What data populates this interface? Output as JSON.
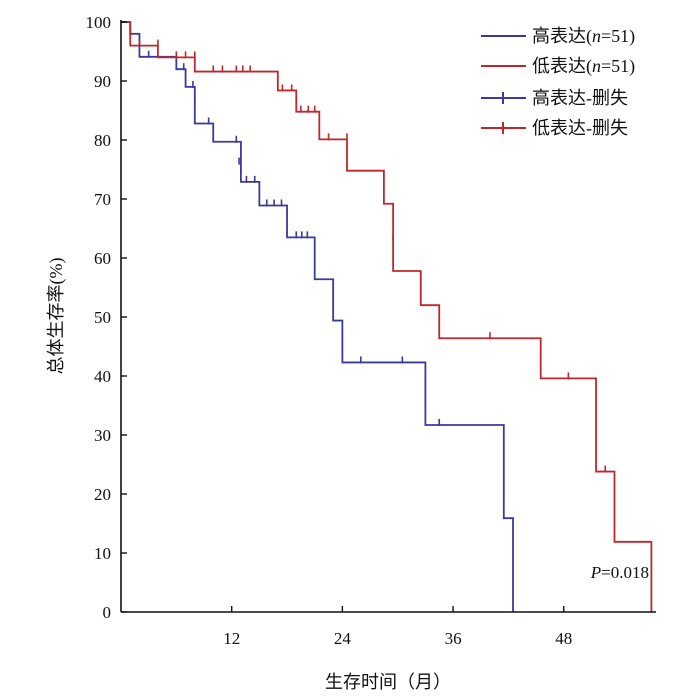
{
  "chart_data": {
    "type": "line",
    "chart_kind": "kaplan-meier",
    "title": "",
    "xlabel": "生存时间（月）",
    "ylabel": "总体生存率(%)",
    "xlim": [
      0,
      58
    ],
    "ylim": [
      0,
      100
    ],
    "xticks": [
      12,
      24,
      36,
      48
    ],
    "yticks": [
      0,
      10,
      20,
      30,
      40,
      50,
      60,
      70,
      80,
      90,
      100
    ],
    "legend_position": "top-right",
    "annotation": {
      "prefix": "P",
      "text": "=0.018"
    },
    "series": [
      {
        "name": "高表达(n=51)",
        "label_prefix": "高表达(",
        "label_n": "n",
        "label_suffix": "=51)",
        "censor_label": "高表达-删失",
        "color": "#3a3a9a",
        "steps": [
          [
            0,
            100
          ],
          [
            1,
            98
          ],
          [
            2,
            94.1
          ],
          [
            6,
            92
          ],
          [
            7,
            89
          ],
          [
            8,
            82.8
          ],
          [
            10,
            79.7
          ],
          [
            13,
            72.9
          ],
          [
            15,
            68.9
          ],
          [
            18,
            63.5
          ],
          [
            21,
            56.4
          ],
          [
            23,
            49.4
          ],
          [
            24,
            42.3
          ],
          [
            33,
            31.7
          ],
          [
            41.5,
            15.9
          ],
          [
            42.5,
            0
          ]
        ],
        "censored": [
          [
            1,
            98
          ],
          [
            3,
            94.1
          ],
          [
            6.8,
            92
          ],
          [
            7.8,
            89
          ],
          [
            8,
            86
          ],
          [
            9.5,
            82.8
          ],
          [
            12.5,
            79.7
          ],
          [
            12.8,
            76
          ],
          [
            13.6,
            72.9
          ],
          [
            14.5,
            72.9
          ],
          [
            15.8,
            68.9
          ],
          [
            16.6,
            68.9
          ],
          [
            17.4,
            68.9
          ],
          [
            19,
            63.5
          ],
          [
            19.6,
            63.5
          ],
          [
            20.2,
            63.5
          ],
          [
            26,
            42.3
          ],
          [
            30.5,
            42.3
          ],
          [
            34.5,
            31.7
          ]
        ]
      },
      {
        "name": "低表达(n=51)",
        "label_prefix": "低表达(",
        "label_n": "n",
        "label_suffix": "=51)",
        "censor_label": "低表达-删失",
        "color": "#c0272d",
        "steps": [
          [
            0,
            100
          ],
          [
            1,
            96
          ],
          [
            4,
            94
          ],
          [
            8,
            91.6
          ],
          [
            17,
            88.4
          ],
          [
            19,
            84.8
          ],
          [
            21.5,
            80.1
          ],
          [
            24.5,
            74.8
          ],
          [
            28.5,
            69.2
          ],
          [
            29.5,
            57.8
          ],
          [
            32.5,
            52
          ],
          [
            34.5,
            46.4
          ],
          [
            45.5,
            39.6
          ],
          [
            51.5,
            23.8
          ],
          [
            53.5,
            11.9
          ],
          [
            57.5,
            0
          ]
        ],
        "censored": [
          [
            2,
            96
          ],
          [
            4,
            96
          ],
          [
            6,
            94
          ],
          [
            7,
            94
          ],
          [
            8,
            94
          ],
          [
            10,
            91.6
          ],
          [
            11,
            91.6
          ],
          [
            12.5,
            91.6
          ],
          [
            13.2,
            91.6
          ],
          [
            14,
            91.6
          ],
          [
            17.5,
            88.4
          ],
          [
            18.5,
            88.4
          ],
          [
            19.5,
            84.8
          ],
          [
            20.3,
            84.8
          ],
          [
            21,
            84.8
          ],
          [
            22.5,
            80.1
          ],
          [
            24.5,
            80.1
          ],
          [
            29.5,
            63
          ],
          [
            40,
            46.4
          ],
          [
            48.5,
            39.6
          ],
          [
            52.5,
            23.8
          ]
        ]
      }
    ]
  }
}
